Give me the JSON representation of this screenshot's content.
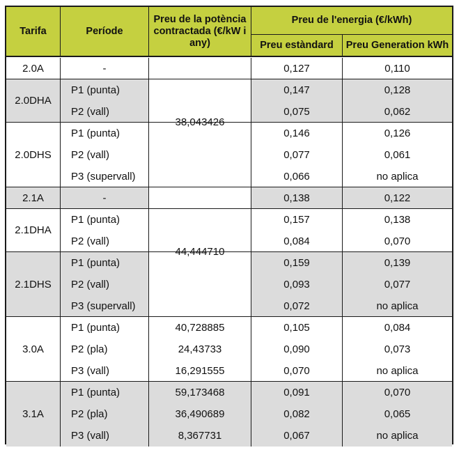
{
  "headers": {
    "tarifa": "Tarifa",
    "periode": "Període",
    "potencia": "Preu de la potència contractada (€/kW i any)",
    "energia": "Preu de l'energia (€/kWh)",
    "estandard": "Preu estàndard",
    "generation": "Preu Generation kWh"
  },
  "groups": [
    {
      "tarifa": "2.0A",
      "shade": "w",
      "rows": [
        {
          "periode": "-",
          "estandard": "0,127",
          "generation": "0,110"
        }
      ]
    },
    {
      "tarifa": "2.0DHA",
      "shade": "s",
      "rows": [
        {
          "periode": "P1 (punta)",
          "estandard": "0,147",
          "generation": "0,128"
        },
        {
          "periode": "P2 (vall)",
          "estandard": "0,075",
          "generation": "0,062"
        }
      ]
    },
    {
      "tarifa": "2.0DHS",
      "shade": "w",
      "rows": [
        {
          "periode": "P1 (punta)",
          "estandard": "0,146",
          "generation": "0,126"
        },
        {
          "periode": "P2 (vall)",
          "estandard": "0,077",
          "generation": "0,061"
        },
        {
          "periode": "P3 (supervall)",
          "estandard": "0,066",
          "generation": "no aplica"
        }
      ]
    },
    {
      "tarifa": "2.1A",
      "shade": "s",
      "rows": [
        {
          "periode": "-",
          "estandard": "0,138",
          "generation": "0,122"
        }
      ]
    },
    {
      "tarifa": "2.1DHA",
      "shade": "w",
      "rows": [
        {
          "periode": "P1 (punta)",
          "estandard": "0,157",
          "generation": "0,138"
        },
        {
          "periode": "P2 (vall)",
          "estandard": "0,084",
          "generation": "0,070"
        }
      ]
    },
    {
      "tarifa": "2.1DHS",
      "shade": "s",
      "rows": [
        {
          "periode": "P1 (punta)",
          "estandard": "0,159",
          "generation": "0,139"
        },
        {
          "periode": "P2 (vall)",
          "estandard": "0,093",
          "generation": "0,077"
        },
        {
          "periode": "P3 (supervall)",
          "estandard": "0,072",
          "generation": "no aplica"
        }
      ]
    },
    {
      "tarifa": "3.0A",
      "shade": "w",
      "rows": [
        {
          "periode": "P1 (punta)",
          "potencia": "40,728885",
          "estandard": "0,105",
          "generation": "0,084"
        },
        {
          "periode": "P2 (pla)",
          "potencia": "24,43733",
          "estandard": "0,090",
          "generation": "0,073"
        },
        {
          "periode": "P3 (vall)",
          "potencia": "16,291555",
          "estandard": "0,070",
          "generation": "no aplica"
        }
      ]
    },
    {
      "tarifa": "3.1A",
      "shade": "s",
      "rows": [
        {
          "periode": "P1 (punta)",
          "potencia": "59,173468",
          "estandard": "0,091",
          "generation": "0,070"
        },
        {
          "periode": "P2 (pla)",
          "potencia": "36,490689",
          "estandard": "0,082",
          "generation": "0,065"
        },
        {
          "periode": "P3 (vall)",
          "potencia": "8,367731",
          "estandard": "0,067",
          "generation": "no aplica"
        }
      ]
    }
  ],
  "shared_potencia": [
    {
      "groups": [
        0,
        1,
        2
      ],
      "value": "38,043426"
    },
    {
      "groups": [
        3,
        4,
        5
      ],
      "value": "44,444710"
    }
  ]
}
